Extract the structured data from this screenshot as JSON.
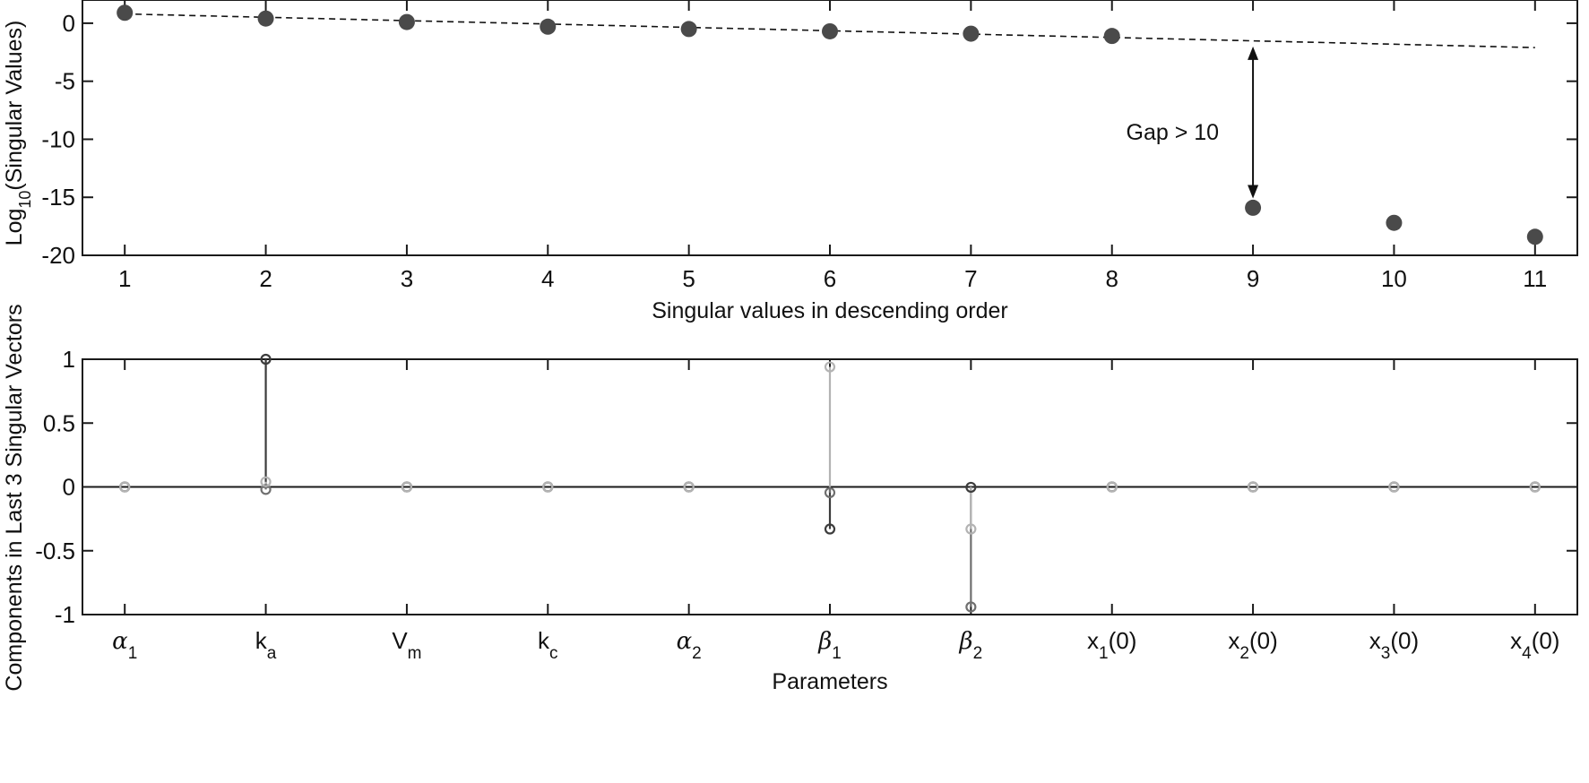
{
  "chart_data": [
    {
      "type": "scatter",
      "xlabel": "Singular values in descending order",
      "ylabel": "Log10(Singular Values)",
      "ylabel_parts": {
        "base": "Log",
        "sub": "10",
        "rest": "(Singular Values)"
      },
      "xlim": [
        0.7,
        11.3
      ],
      "ylim": [
        -20,
        2
      ],
      "xticks": [
        1,
        2,
        3,
        4,
        5,
        6,
        7,
        8,
        9,
        10,
        11
      ],
      "yticks": [
        0,
        -5,
        -10,
        -15,
        -20
      ],
      "ytick_labels": [
        "0",
        "-5",
        "-10",
        "-15",
        "-20"
      ],
      "series": [
        {
          "x": [
            1,
            2,
            3,
            4,
            5,
            6,
            7,
            8,
            9,
            10,
            11
          ],
          "values": [
            0.9,
            0.4,
            0.1,
            -0.3,
            -0.5,
            -0.7,
            -0.9,
            -1.1,
            -15.9,
            -17.2,
            -18.4
          ],
          "color": "#4a4a4a"
        }
      ],
      "trend_line": {
        "x": [
          1,
          11
        ],
        "y": [
          0.8,
          -2.1
        ],
        "style": "dashed",
        "color": "#111111"
      },
      "annotation": {
        "text": "Gap > 10",
        "arrow_x": 9,
        "arrow_y": [
          -2.0,
          -15.1
        ]
      },
      "grid": false
    },
    {
      "type": "stem",
      "xlabel": "Parameters",
      "ylabel": "Components in Last 3 Singular Vectors",
      "categories": [
        {
          "base": "α",
          "sub": "1",
          "rest": "",
          "greek": true
        },
        {
          "base": "k",
          "sub": "a",
          "rest": "",
          "greek": false
        },
        {
          "base": "V",
          "sub": "m",
          "rest": "",
          "greek": false
        },
        {
          "base": "k",
          "sub": "c",
          "rest": "",
          "greek": false
        },
        {
          "base": "α",
          "sub": "2",
          "rest": "",
          "greek": true
        },
        {
          "base": "β",
          "sub": "1",
          "rest": "",
          "greek": true
        },
        {
          "base": "β",
          "sub": "2",
          "rest": "",
          "greek": true
        },
        {
          "base": "x",
          "sub": "1",
          "rest": "(0)",
          "greek": false
        },
        {
          "base": "x",
          "sub": "2",
          "rest": "(0)",
          "greek": false
        },
        {
          "base": "x",
          "sub": "3",
          "rest": "(0)",
          "greek": false
        },
        {
          "base": "x",
          "sub": "4",
          "rest": "(0)",
          "greek": false
        }
      ],
      "ylim": [
        -1,
        1
      ],
      "yticks": [
        1,
        0.5,
        0,
        -0.5,
        -1
      ],
      "ytick_labels": [
        "1",
        "0.5",
        "0",
        "-0.5",
        "-1"
      ],
      "series": [
        {
          "values": [
            0,
            1.0,
            0,
            0,
            0,
            -0.33,
            -0.003,
            0,
            0,
            0,
            0
          ],
          "color": "#3c3c3c"
        },
        {
          "values": [
            0,
            -0.02,
            0,
            0,
            0,
            -0.045,
            -0.94,
            0,
            0,
            0,
            0
          ],
          "color": "#6f6f6f"
        },
        {
          "values": [
            0,
            0.04,
            0,
            0,
            0,
            0.94,
            -0.33,
            0,
            0,
            0,
            0
          ],
          "color": "#b3b3b3"
        }
      ],
      "baseline": 0,
      "grid": false
    }
  ]
}
